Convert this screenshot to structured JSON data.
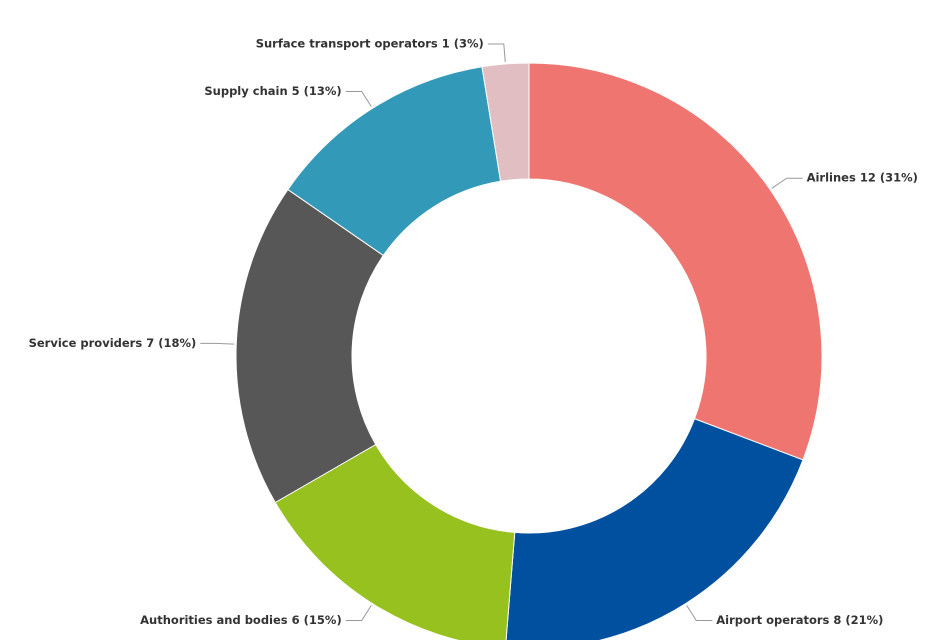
{
  "chart_data": {
    "type": "donut",
    "values": [
      12,
      8,
      6,
      7,
      5,
      1
    ],
    "value_labels": [
      "Airlines 12 (31%)",
      "Airport operators 8 (21%)",
      "Authorities and bodies 6 (15%)",
      "Service providers 7 (18%)",
      "Supply chain 5 (13%)",
      "Surface transport operators 1 (3%)"
    ],
    "colors": [
      "#ef7670",
      "#0050a0",
      "#96c11f",
      "#575757",
      "#3399b8",
      "#e1bec1"
    ]
  }
}
